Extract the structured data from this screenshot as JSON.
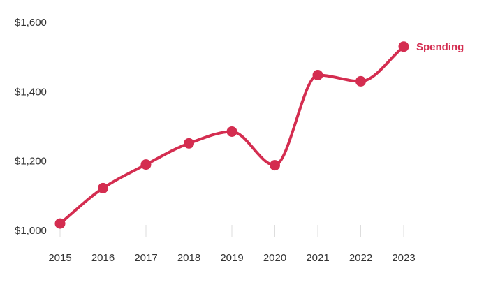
{
  "chart_data": {
    "type": "line",
    "title": "",
    "xlabel": "",
    "ylabel": "",
    "x": [
      "2015",
      "2016",
      "2017",
      "2018",
      "2019",
      "2020",
      "2021",
      "2022",
      "2023"
    ],
    "series": [
      {
        "name": "Spending",
        "values": [
          1020,
          1122,
          1190,
          1251,
          1285,
          1188,
          1448,
          1430,
          1530
        ],
        "color": "#d42d50"
      }
    ],
    "ylim": [
      1000,
      1600
    ],
    "y_ticks": [
      1000,
      1200,
      1400,
      1600
    ],
    "y_tick_labels": [
      "$1,000",
      "$1,200",
      "$1,400",
      "$1,600"
    ],
    "grid": false,
    "legend": "direct label at end of line",
    "smooth": true
  }
}
